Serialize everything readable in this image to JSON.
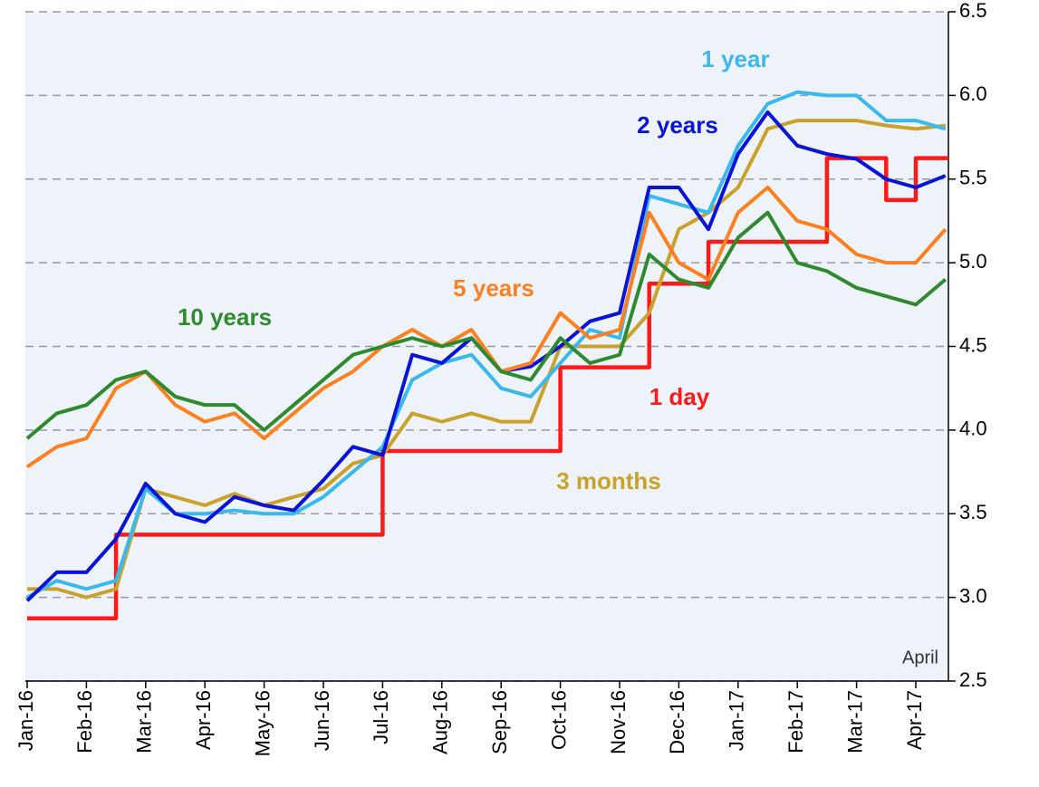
{
  "chart_data": {
    "type": "line",
    "categories": [
      "Jan-16",
      null,
      "Feb-16",
      null,
      "Mar-16",
      null,
      "Apr-16",
      null,
      "May-16",
      null,
      "Jun-16",
      null,
      "Jul-16",
      null,
      "Aug-16",
      null,
      "Sep-16",
      null,
      "Oct-16",
      null,
      "Nov-16",
      null,
      "Dec-16",
      null,
      "Jan-17",
      null,
      "Feb-17",
      null,
      "Mar-17",
      null,
      "Apr-17",
      null
    ],
    "series": [
      {
        "name": "1 day",
        "color": "#ff1a1a",
        "step": true,
        "values": [
          2.875,
          2.875,
          2.875,
          3.375,
          3.375,
          3.375,
          3.375,
          3.375,
          3.375,
          3.375,
          3.375,
          3.375,
          3.875,
          3.875,
          3.875,
          3.875,
          3.875,
          3.875,
          4.375,
          4.375,
          4.375,
          4.875,
          4.875,
          5.125,
          5.125,
          5.125,
          5.125,
          5.625,
          5.625,
          5.375,
          5.625,
          5.625
        ]
      },
      {
        "name": "3 months",
        "color": "#c9a12b",
        "values": [
          3.05,
          3.05,
          3.0,
          3.05,
          3.65,
          3.6,
          3.55,
          3.62,
          3.55,
          3.6,
          3.65,
          3.8,
          3.85,
          4.1,
          4.05,
          4.1,
          4.05,
          4.05,
          4.5,
          4.5,
          4.5,
          4.7,
          5.2,
          5.3,
          5.45,
          5.8,
          5.85,
          5.85,
          5.85,
          5.82,
          5.8,
          5.82
        ]
      },
      {
        "name": "1 year",
        "color": "#3cb9ec",
        "values": [
          3.0,
          3.1,
          3.05,
          3.1,
          3.65,
          3.5,
          3.5,
          3.52,
          3.5,
          3.5,
          3.6,
          3.75,
          3.9,
          4.3,
          4.4,
          4.45,
          4.25,
          4.2,
          4.4,
          4.6,
          4.55,
          5.4,
          5.35,
          5.3,
          5.7,
          5.95,
          6.02,
          6.0,
          6.0,
          5.85,
          5.85,
          5.8
        ]
      },
      {
        "name": "2 years",
        "color": "#0a14d8",
        "values": [
          2.98,
          3.15,
          3.15,
          3.35,
          3.68,
          3.5,
          3.45,
          3.6,
          3.55,
          3.52,
          3.7,
          3.9,
          3.85,
          4.45,
          4.4,
          4.55,
          4.35,
          4.38,
          4.5,
          4.65,
          4.7,
          5.45,
          5.45,
          5.2,
          5.65,
          5.9,
          5.7,
          5.65,
          5.62,
          5.5,
          5.45,
          5.52
        ]
      },
      {
        "name": "5 years",
        "color": "#ff8020",
        "values": [
          3.78,
          3.9,
          3.95,
          4.25,
          4.35,
          4.15,
          4.05,
          4.1,
          3.95,
          4.1,
          4.25,
          4.35,
          4.5,
          4.6,
          4.5,
          4.6,
          4.35,
          4.4,
          4.7,
          4.55,
          4.6,
          5.3,
          5.0,
          4.9,
          5.3,
          5.45,
          5.25,
          5.2,
          5.05,
          5.0,
          5.0,
          5.2
        ]
      },
      {
        "name": "10 years",
        "color": "#2f8a2f",
        "values": [
          3.95,
          4.1,
          4.15,
          4.3,
          4.35,
          4.2,
          4.15,
          4.15,
          4.0,
          4.15,
          4.3,
          4.45,
          4.5,
          4.55,
          4.5,
          4.55,
          4.35,
          4.3,
          4.55,
          4.4,
          4.45,
          5.05,
          4.9,
          4.85,
          5.15,
          5.3,
          5.0,
          4.95,
          4.85,
          4.8,
          4.75,
          4.9
        ]
      }
    ],
    "ylim": [
      2.5,
      6.5
    ],
    "yticks": [
      2.5,
      {
        "value": 3,
        "label": "3.0"
      },
      3.5,
      {
        "value": 4,
        "label": "4.0"
      },
      4.5,
      {
        "value": 5,
        "label": "5.0"
      },
      5.5,
      {
        "value": 6,
        "label": "6.0"
      },
      6.5
    ],
    "y_axis_side": "right",
    "grid": true,
    "annotations": [
      "April"
    ]
  }
}
